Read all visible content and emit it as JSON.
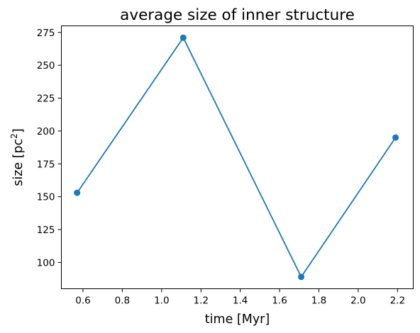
{
  "chart_data": {
    "type": "line",
    "title": "average size of inner structure",
    "xlabel": "time [Myr]",
    "ylabel_main": "size [pc",
    "ylabel_sup": "2",
    "ylabel_end": "]",
    "xlim": [
      0.49,
      2.28
    ],
    "ylim": [
      80.0,
      280.0
    ],
    "xticks": [
      0.6,
      0.8,
      1.0,
      1.2,
      1.4,
      1.6,
      1.8,
      2.0,
      2.2
    ],
    "xtick_labels": [
      "0.6",
      "0.8",
      "1.0",
      "1.2",
      "1.4",
      "1.6",
      "1.8",
      "2.0",
      "2.2"
    ],
    "yticks": [
      100,
      125,
      150,
      175,
      200,
      225,
      250,
      275
    ],
    "ytick_labels": [
      "100",
      "125",
      "150",
      "175",
      "200",
      "225",
      "250",
      "275"
    ],
    "grid": false,
    "series": [
      {
        "color": "#1f77b4",
        "marker": "circle",
        "x": [
          0.57,
          1.11,
          1.71,
          2.19
        ],
        "y": [
          153,
          271,
          89,
          195
        ]
      }
    ]
  }
}
